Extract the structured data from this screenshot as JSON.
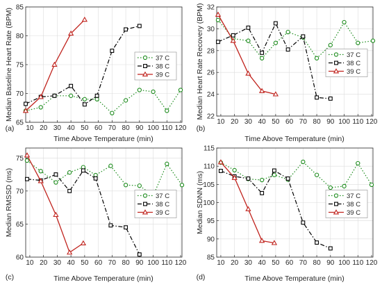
{
  "colors": {
    "s37": "#1a8a1a",
    "s38": "#000000",
    "s39": "#c0221c",
    "grid": "#dcdcdc",
    "axis": "#262626"
  },
  "chart_data": [
    {
      "type": "line",
      "panel_label": "(a)",
      "xlabel": "Time Above Temperature (min)",
      "ylabel": "Median Baseline Heart Rate (BPM)",
      "xlim": [
        7,
        121
      ],
      "ylim": [
        65,
        85
      ],
      "xticks": [
        10,
        20,
        30,
        40,
        50,
        60,
        70,
        80,
        90,
        100,
        110,
        120
      ],
      "yticks": [
        65,
        70,
        75,
        80,
        85
      ],
      "grid": true,
      "legend_position": "right-middle",
      "series": [
        {
          "name": "37 C",
          "style": "dotted",
          "marker": "circle",
          "x": [
            7,
            18,
            28,
            40,
            50,
            59,
            70,
            80,
            90,
            100,
            110,
            120
          ],
          "y": [
            67.0,
            67.6,
            69.6,
            69.6,
            69.0,
            69.0,
            66.6,
            68.8,
            70.6,
            70.3,
            67.0,
            70.6
          ]
        },
        {
          "name": "38 C",
          "style": "dashdot",
          "marker": "square",
          "x": [
            7,
            18,
            28,
            40,
            50,
            59,
            70,
            80,
            90
          ],
          "y": [
            68.2,
            69.4,
            69.6,
            71.3,
            68.1,
            69.6,
            77.4,
            81.1,
            81.7
          ]
        },
        {
          "name": "39 C",
          "style": "solid",
          "marker": "triangle",
          "x": [
            7,
            18,
            28,
            40,
            50
          ],
          "y": [
            67.0,
            69.4,
            75.0,
            80.4,
            82.8
          ]
        }
      ]
    },
    {
      "type": "line",
      "panel_label": "(b)",
      "xlabel": "Time Above Temperature (min)",
      "ylabel": "Median Heart Rate Recovery (BPM)",
      "xlim": [
        7,
        121
      ],
      "ylim": [
        22,
        32
      ],
      "xticks": [
        10,
        20,
        30,
        40,
        50,
        60,
        70,
        80,
        90,
        100,
        110,
        120
      ],
      "yticks": [
        22,
        24,
        26,
        28,
        30,
        32
      ],
      "grid": true,
      "legend_position": "right-middle",
      "series": [
        {
          "name": "37 C",
          "style": "dotted",
          "marker": "circle",
          "x": [
            8,
            19,
            30,
            40,
            50,
            59,
            70,
            80,
            90,
            100,
            110,
            121
          ],
          "y": [
            30.8,
            29.1,
            28.9,
            27.3,
            28.7,
            29.7,
            29.2,
            27.3,
            28.5,
            30.6,
            28.7,
            28.9
          ]
        },
        {
          "name": "38 C",
          "style": "dashdot",
          "marker": "square",
          "x": [
            8,
            19,
            30,
            40,
            50,
            59,
            70,
            80,
            90
          ],
          "y": [
            28.8,
            29.4,
            30.1,
            27.8,
            30.5,
            28.1,
            29.3,
            23.7,
            23.6
          ]
        },
        {
          "name": "39 C",
          "style": "solid",
          "marker": "triangle",
          "x": [
            8,
            19,
            30,
            40,
            50
          ],
          "y": [
            31.3,
            28.9,
            25.9,
            24.3,
            24.0
          ]
        }
      ]
    },
    {
      "type": "line",
      "panel_label": "(c)",
      "xlabel": "Time Above Temperature (min)",
      "ylabel": "Median RMSSD (ms)",
      "xlim": [
        7,
        121
      ],
      "ylim": [
        60,
        76.5
      ],
      "xticks": [
        10,
        20,
        30,
        40,
        50,
        60,
        70,
        80,
        90,
        100,
        110,
        120
      ],
      "yticks": [
        60,
        65,
        70,
        75
      ],
      "grid": true,
      "legend_position": "right-middle",
      "series": [
        {
          "name": "37 C",
          "style": "dotted",
          "marker": "circle",
          "x": [
            8,
            18,
            29,
            39,
            49,
            58,
            69,
            80,
            90,
            100,
            110,
            121
          ],
          "y": [
            74.6,
            73.0,
            71.3,
            72.8,
            73.6,
            72.4,
            73.8,
            70.9,
            70.8,
            69.3,
            74.1,
            70.9
          ]
        },
        {
          "name": "38 C",
          "style": "dashdot",
          "marker": "square",
          "x": [
            8,
            18,
            29,
            39,
            49,
            58,
            69,
            80,
            90
          ],
          "y": [
            71.8,
            71.6,
            72.5,
            70.0,
            73.1,
            71.9,
            64.8,
            64.5,
            60.4
          ]
        },
        {
          "name": "39 C",
          "style": "solid",
          "marker": "triangle",
          "x": [
            8,
            18,
            29,
            39,
            49
          ],
          "y": [
            75.4,
            71.5,
            66.4,
            60.7,
            62.1
          ]
        }
      ]
    },
    {
      "type": "line",
      "panel_label": "(d)",
      "xlabel": "Time Above Temperature (min)",
      "ylabel": "Median SDNN (ms)",
      "xlim": [
        7,
        121
      ],
      "ylim": [
        85,
        115
      ],
      "xticks": [
        10,
        20,
        30,
        40,
        50,
        60,
        70,
        80,
        90,
        100,
        110,
        120
      ],
      "yticks": [
        85,
        90,
        95,
        100,
        105,
        110,
        115
      ],
      "grid": true,
      "legend_position": "right-middle",
      "series": [
        {
          "name": "37 C",
          "style": "dotted",
          "marker": "circle",
          "x": [
            10,
            20,
            30,
            40,
            49,
            59,
            70,
            80,
            90,
            100,
            110,
            120
          ],
          "y": [
            111.0,
            108.9,
            106.5,
            106.2,
            107.6,
            106.3,
            111.2,
            107.6,
            104.1,
            104.5,
            110.8,
            104.9
          ]
        },
        {
          "name": "38 C",
          "style": "dashdot",
          "marker": "square",
          "x": [
            10,
            20,
            30,
            40,
            49,
            59,
            70,
            80,
            90
          ],
          "y": [
            108.7,
            107.2,
            106.6,
            102.6,
            108.8,
            106.6,
            94.5,
            89.0,
            87.4
          ]
        },
        {
          "name": "39 C",
          "style": "solid",
          "marker": "triangle",
          "x": [
            10,
            20,
            30,
            40,
            49
          ],
          "y": [
            111.1,
            106.8,
            98.2,
            89.5,
            88.9
          ]
        }
      ]
    }
  ]
}
